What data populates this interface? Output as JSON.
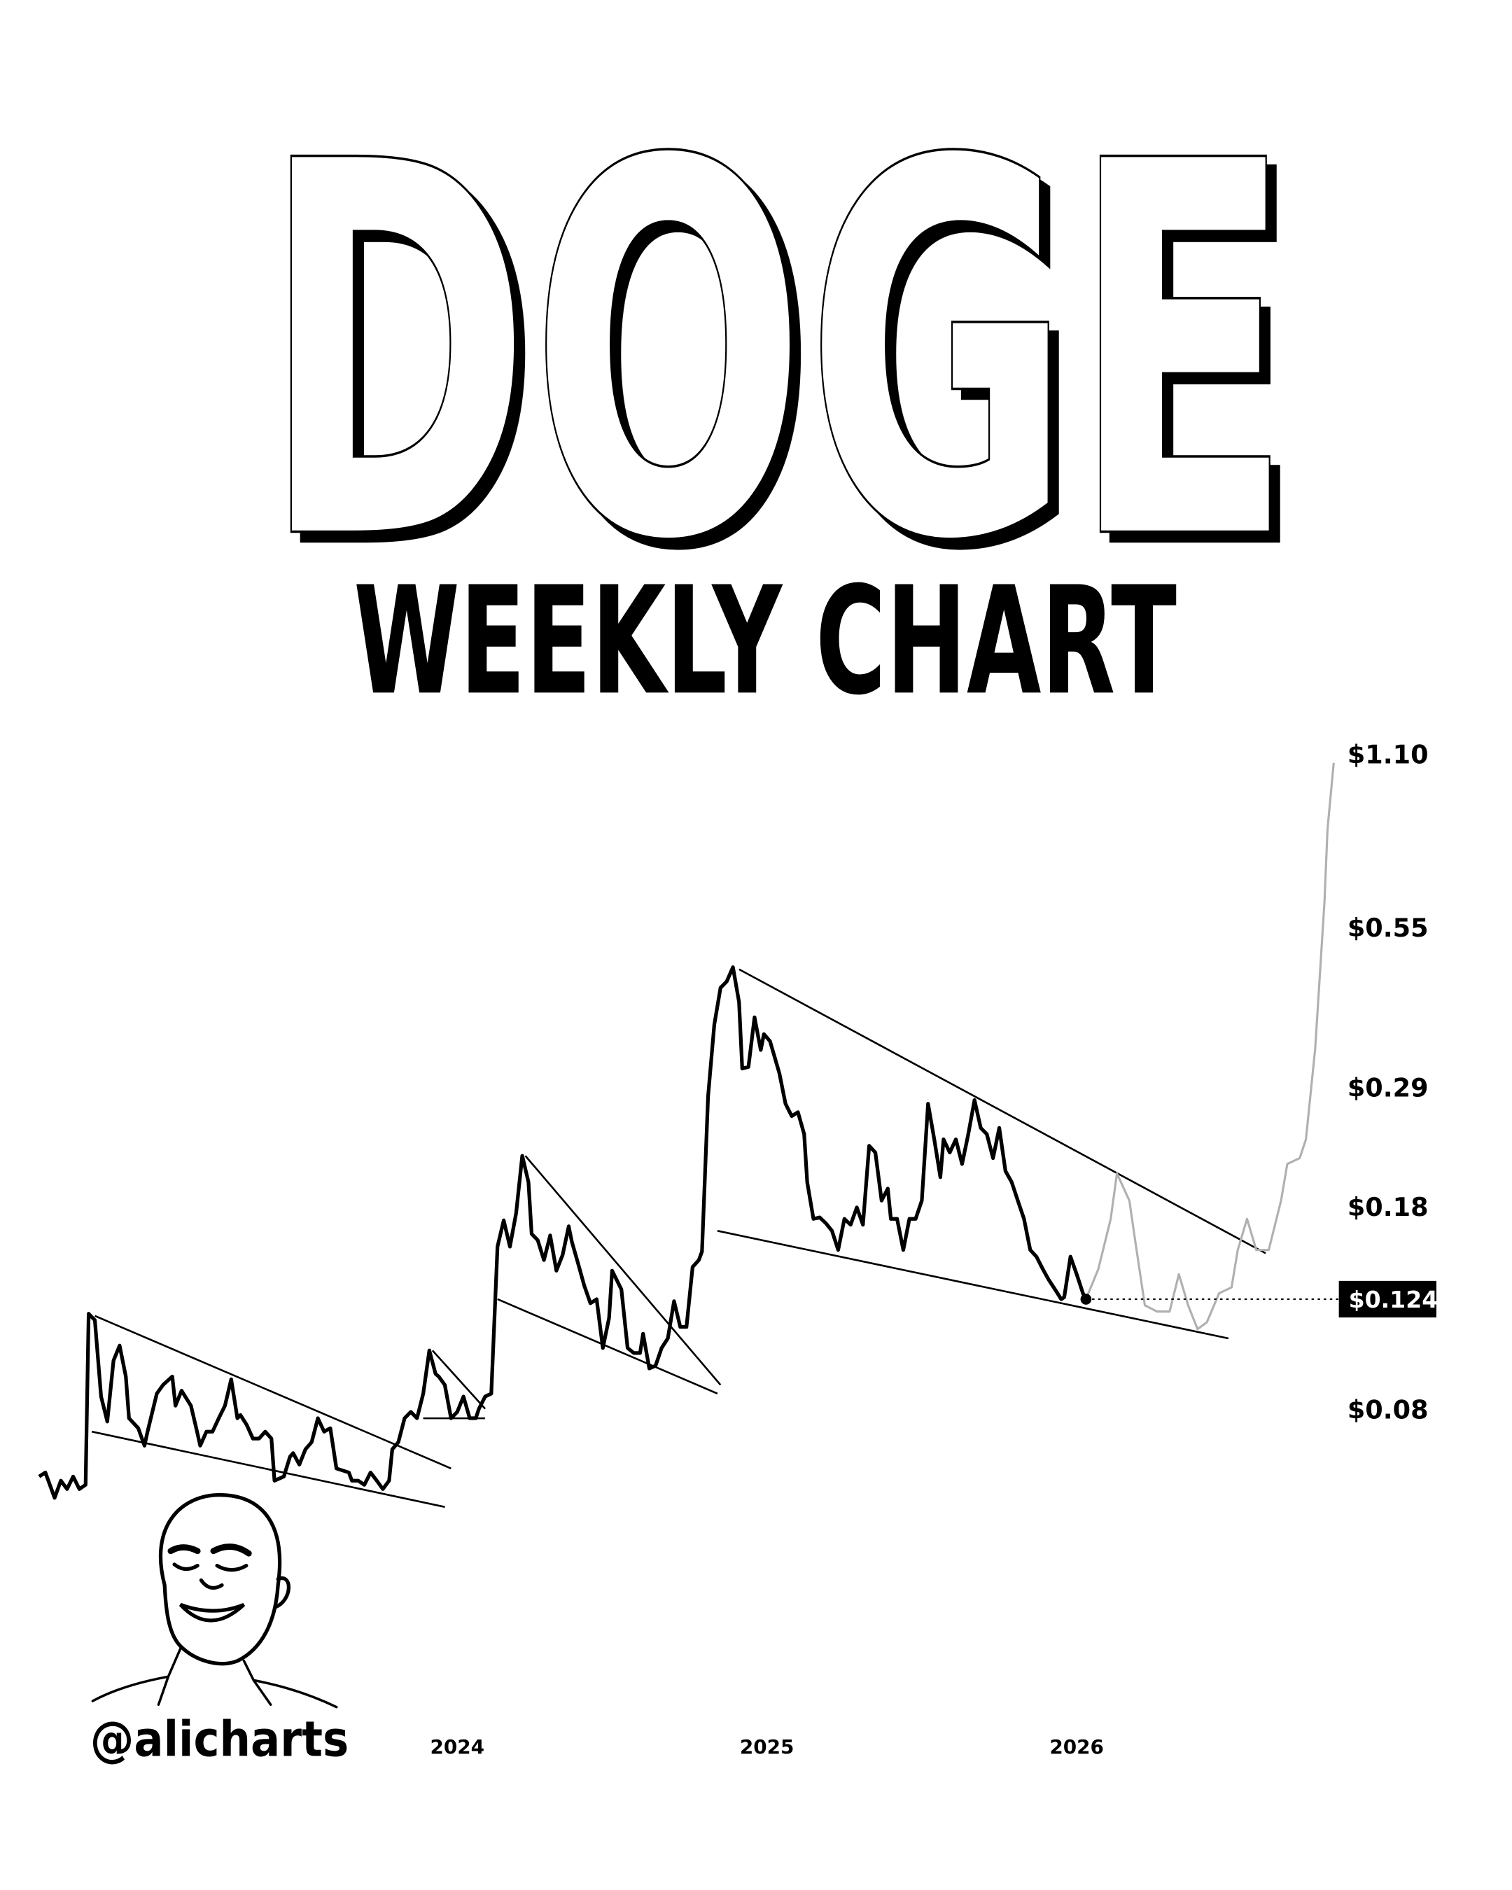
{
  "header": {
    "title": "DOGE",
    "subtitle": "WEEKLY CHART"
  },
  "branding": {
    "handle": "@alicharts"
  },
  "colors": {
    "price_line": "#000000",
    "projection_line": "#b0b0b0",
    "trendline": "#000000",
    "price_tag_bg": "#000000",
    "price_tag_text": "#ffffff"
  },
  "chart_data": {
    "type": "line",
    "title": "",
    "xlabel": "",
    "ylabel": "",
    "y_scale": "log",
    "grid": false,
    "legend": "none",
    "x_ticks": [
      {
        "label": "2024",
        "value": 2024
      },
      {
        "label": "2025",
        "value": 2025
      },
      {
        "label": "2026",
        "value": 2026
      }
    ],
    "y_ticks": [
      {
        "label": "$1.10",
        "value": 1.1
      },
      {
        "label": "$0.55",
        "value": 0.55
      },
      {
        "label": "$0.29",
        "value": 0.29
      },
      {
        "label": "$0.18",
        "value": 0.18
      },
      {
        "label": "$0.08",
        "value": 0.08
      }
    ],
    "current_price": {
      "label": "$0.124",
      "value": 0.124
    },
    "series": [
      {
        "style": "solid-black",
        "points": [
          [
            2022.65,
            0.061
          ],
          [
            2022.67,
            0.062
          ],
          [
            2022.7,
            0.056
          ],
          [
            2022.72,
            0.06
          ],
          [
            2022.74,
            0.058
          ],
          [
            2022.76,
            0.061
          ],
          [
            2022.78,
            0.058
          ],
          [
            2022.8,
            0.059
          ],
          [
            2022.81,
            0.117
          ],
          [
            2022.83,
            0.114
          ],
          [
            2022.85,
            0.084
          ],
          [
            2022.87,
            0.076
          ],
          [
            2022.89,
            0.097
          ],
          [
            2022.91,
            0.103
          ],
          [
            2022.93,
            0.091
          ],
          [
            2022.94,
            0.077
          ],
          [
            2022.97,
            0.074
          ],
          [
            2022.99,
            0.069
          ],
          [
            2023.0,
            0.073
          ],
          [
            2023.03,
            0.085
          ],
          [
            2023.05,
            0.088
          ],
          [
            2023.08,
            0.091
          ],
          [
            2023.09,
            0.081
          ],
          [
            2023.11,
            0.086
          ],
          [
            2023.14,
            0.081
          ],
          [
            2023.16,
            0.073
          ],
          [
            2023.17,
            0.069
          ],
          [
            2023.19,
            0.073
          ],
          [
            2023.21,
            0.073
          ],
          [
            2023.23,
            0.077
          ],
          [
            2023.25,
            0.081
          ],
          [
            2023.27,
            0.09
          ],
          [
            2023.29,
            0.077
          ],
          [
            2023.3,
            0.078
          ],
          [
            2023.32,
            0.075
          ],
          [
            2023.34,
            0.071
          ],
          [
            2023.36,
            0.071
          ],
          [
            2023.38,
            0.073
          ],
          [
            2023.4,
            0.071
          ],
          [
            2023.41,
            0.06
          ],
          [
            2023.44,
            0.061
          ],
          [
            2023.46,
            0.066
          ],
          [
            2023.47,
            0.067
          ],
          [
            2023.49,
            0.064
          ],
          [
            2023.51,
            0.068
          ],
          [
            2023.53,
            0.07
          ],
          [
            2023.55,
            0.077
          ],
          [
            2023.57,
            0.073
          ],
          [
            2023.59,
            0.074
          ],
          [
            2023.61,
            0.063
          ],
          [
            2023.65,
            0.062
          ],
          [
            2023.66,
            0.06
          ],
          [
            2023.68,
            0.06
          ],
          [
            2023.7,
            0.059
          ],
          [
            2023.72,
            0.062
          ],
          [
            2023.74,
            0.06
          ],
          [
            2023.76,
            0.058
          ],
          [
            2023.78,
            0.06
          ],
          [
            2023.79,
            0.068
          ],
          [
            2023.81,
            0.07
          ],
          [
            2023.83,
            0.077
          ],
          [
            2023.85,
            0.079
          ],
          [
            2023.87,
            0.077
          ],
          [
            2023.89,
            0.085
          ],
          [
            2023.91,
            0.101
          ],
          [
            2023.93,
            0.092
          ],
          [
            2023.94,
            0.091
          ],
          [
            2023.96,
            0.088
          ],
          [
            2023.98,
            0.077
          ],
          [
            2024.0,
            0.079
          ],
          [
            2024.02,
            0.084
          ],
          [
            2024.04,
            0.077
          ],
          [
            2024.06,
            0.077
          ],
          [
            2024.07,
            0.08
          ],
          [
            2024.09,
            0.084
          ],
          [
            2024.11,
            0.085
          ],
          [
            2024.13,
            0.153
          ],
          [
            2024.15,
            0.17
          ],
          [
            2024.17,
            0.153
          ],
          [
            2024.19,
            0.175
          ],
          [
            2024.21,
            0.22
          ],
          [
            2024.23,
            0.198
          ],
          [
            2024.24,
            0.161
          ],
          [
            2024.26,
            0.157
          ],
          [
            2024.28,
            0.145
          ],
          [
            2024.3,
            0.16
          ],
          [
            2024.32,
            0.139
          ],
          [
            2024.34,
            0.148
          ],
          [
            2024.36,
            0.166
          ],
          [
            2024.37,
            0.156
          ],
          [
            2024.39,
            0.143
          ],
          [
            2024.41,
            0.131
          ],
          [
            2024.43,
            0.122
          ],
          [
            2024.45,
            0.124
          ],
          [
            2024.47,
            0.102
          ],
          [
            2024.49,
            0.115
          ],
          [
            2024.5,
            0.139
          ],
          [
            2024.53,
            0.129
          ],
          [
            2024.55,
            0.102
          ],
          [
            2024.57,
            0.1
          ],
          [
            2024.59,
            0.1
          ],
          [
            2024.6,
            0.108
          ],
          [
            2024.62,
            0.094
          ],
          [
            2024.64,
            0.095
          ],
          [
            2024.66,
            0.102
          ],
          [
            2024.68,
            0.106
          ],
          [
            2024.7,
            0.123
          ],
          [
            2024.72,
            0.111
          ],
          [
            2024.74,
            0.111
          ],
          [
            2024.76,
            0.141
          ],
          [
            2024.78,
            0.145
          ],
          [
            2024.79,
            0.15
          ],
          [
            2024.81,
            0.279
          ],
          [
            2024.83,
            0.372
          ],
          [
            2024.85,
            0.431
          ],
          [
            2024.87,
            0.442
          ],
          [
            2024.89,
            0.468
          ],
          [
            2024.91,
            0.407
          ],
          [
            2024.92,
            0.312
          ],
          [
            2024.94,
            0.314
          ],
          [
            2024.96,
            0.383
          ],
          [
            2024.98,
            0.336
          ],
          [
            2024.99,
            0.358
          ],
          [
            2025.01,
            0.348
          ],
          [
            2025.04,
            0.306
          ],
          [
            2025.06,
            0.271
          ],
          [
            2025.08,
            0.258
          ],
          [
            2025.1,
            0.262
          ],
          [
            2025.12,
            0.24
          ],
          [
            2025.13,
            0.198
          ],
          [
            2025.15,
            0.171
          ],
          [
            2025.17,
            0.172
          ],
          [
            2025.19,
            0.168
          ],
          [
            2025.21,
            0.163
          ],
          [
            2025.23,
            0.151
          ],
          [
            2025.25,
            0.171
          ],
          [
            2025.27,
            0.167
          ],
          [
            2025.29,
            0.179
          ],
          [
            2025.31,
            0.167
          ],
          [
            2025.33,
            0.229
          ],
          [
            2025.35,
            0.223
          ],
          [
            2025.37,
            0.184
          ],
          [
            2025.39,
            0.193
          ],
          [
            2025.4,
            0.171
          ],
          [
            2025.42,
            0.171
          ],
          [
            2025.44,
            0.151
          ],
          [
            2025.46,
            0.171
          ],
          [
            2025.48,
            0.171
          ],
          [
            2025.5,
            0.184
          ],
          [
            2025.52,
            0.271
          ],
          [
            2025.54,
            0.235
          ],
          [
            2025.56,
            0.202
          ],
          [
            2025.57,
            0.235
          ],
          [
            2025.59,
            0.223
          ],
          [
            2025.61,
            0.235
          ],
          [
            2025.63,
            0.213
          ],
          [
            2025.65,
            0.24
          ],
          [
            2025.67,
            0.275
          ],
          [
            2025.69,
            0.246
          ],
          [
            2025.71,
            0.24
          ],
          [
            2025.73,
            0.218
          ],
          [
            2025.75,
            0.246
          ],
          [
            2025.77,
            0.207
          ],
          [
            2025.79,
            0.198
          ],
          [
            2025.81,
            0.184
          ],
          [
            2025.83,
            0.171
          ],
          [
            2025.85,
            0.151
          ],
          [
            2025.87,
            0.147
          ],
          [
            2025.89,
            0.14
          ],
          [
            2025.91,
            0.134
          ],
          [
            2025.93,
            0.129
          ],
          [
            2025.95,
            0.124
          ],
          [
            2025.96,
            0.125
          ],
          [
            2025.98,
            0.147
          ],
          [
            2026.0,
            0.137
          ],
          [
            2026.02,
            0.127
          ],
          [
            2026.03,
            0.124
          ]
        ]
      },
      {
        "style": "projection-gray",
        "points": [
          [
            2026.03,
            0.124
          ],
          [
            2026.07,
            0.14
          ],
          [
            2026.11,
            0.171
          ],
          [
            2026.13,
            0.205
          ],
          [
            2026.17,
            0.184
          ],
          [
            2026.19,
            0.155
          ],
          [
            2026.22,
            0.121
          ],
          [
            2026.26,
            0.118
          ],
          [
            2026.3,
            0.118
          ],
          [
            2026.33,
            0.137
          ],
          [
            2026.36,
            0.121
          ],
          [
            2026.39,
            0.11
          ],
          [
            2026.42,
            0.113
          ],
          [
            2026.46,
            0.127
          ],
          [
            2026.5,
            0.13
          ],
          [
            2026.52,
            0.151
          ],
          [
            2026.55,
            0.171
          ],
          [
            2026.58,
            0.151
          ],
          [
            2026.62,
            0.151
          ],
          [
            2026.66,
            0.184
          ],
          [
            2026.68,
            0.213
          ],
          [
            2026.72,
            0.218
          ],
          [
            2026.74,
            0.235
          ],
          [
            2026.77,
            0.338
          ],
          [
            2026.8,
            0.607
          ],
          [
            2026.81,
            0.813
          ],
          [
            2026.83,
            1.06
          ]
        ]
      }
    ],
    "trendlines": [
      {
        "from": [
          2022.83,
          0.116
        ],
        "to": [
          2023.98,
          0.063
        ]
      },
      {
        "from": [
          2022.82,
          0.073
        ],
        "to": [
          2023.96,
          0.054
        ]
      },
      {
        "from": [
          2023.92,
          0.101
        ],
        "to": [
          2024.09,
          0.08
        ]
      },
      {
        "from": [
          2023.89,
          0.077
        ],
        "to": [
          2024.09,
          0.077
        ]
      },
      {
        "from": [
          2024.22,
          0.22
        ],
        "to": [
          2024.85,
          0.088
        ]
      },
      {
        "from": [
          2024.13,
          0.124
        ],
        "to": [
          2024.84,
          0.085
        ]
      },
      {
        "from": [
          2024.91,
          0.464
        ],
        "to": [
          2026.61,
          0.149
        ]
      },
      {
        "from": [
          2024.84,
          0.163
        ],
        "to": [
          2026.49,
          0.106
        ]
      }
    ]
  }
}
